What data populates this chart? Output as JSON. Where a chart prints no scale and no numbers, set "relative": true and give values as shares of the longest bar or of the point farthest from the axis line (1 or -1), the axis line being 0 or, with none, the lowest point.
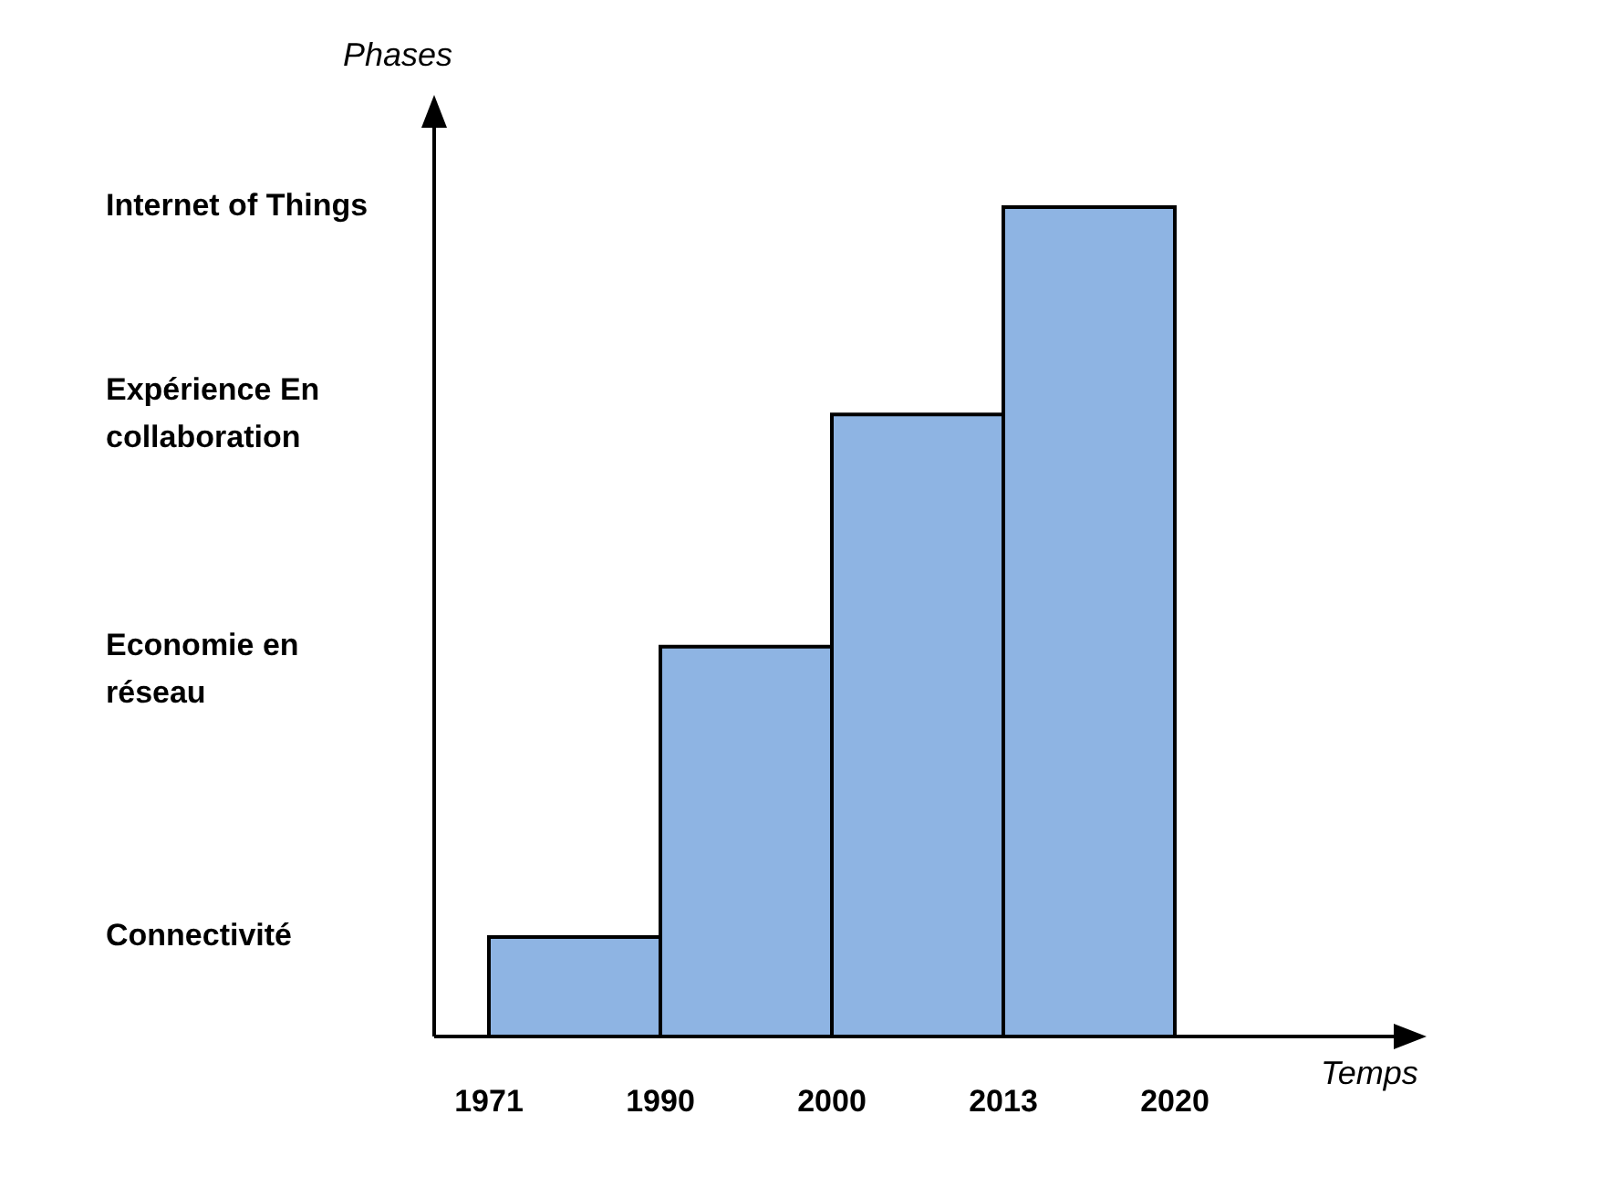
{
  "chart_data": {
    "type": "bar",
    "xlabel": "Temps",
    "ylabel": "Phases",
    "categories": [
      null,
      null,
      null,
      null
    ],
    "values": [
      0.12,
      0.47,
      0.75,
      1
    ],
    "relative": true,
    "color": "#8eb4e3",
    "annotations": [
      "Connectivité",
      "Economie en réseau",
      "Expérience En collaboration",
      "Internet of Things",
      "1971",
      "1990",
      "2000",
      "2013",
      "2020"
    ],
    "grid": false,
    "legend": false
  }
}
